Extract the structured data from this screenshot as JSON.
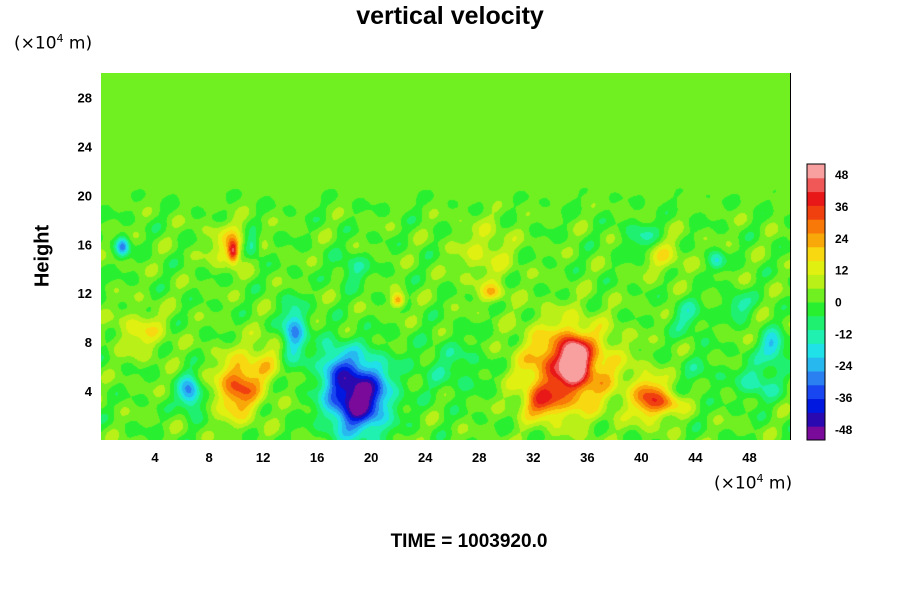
{
  "chart_data": {
    "type": "heatmap",
    "title": "vertical velocity",
    "ylabel": "Height",
    "xlabel": "",
    "x_unit": {
      "prefix": "(×10",
      "exp": "4",
      "suffix": " m)"
    },
    "y_unit": {
      "prefix": "(×10",
      "exp": "4",
      "suffix": " m)"
    },
    "xlim": [
      0,
      51
    ],
    "ylim": [
      0,
      30
    ],
    "x_ticks": [
      "4",
      "8",
      "12",
      "16",
      "20",
      "24",
      "28",
      "32",
      "36",
      "40",
      "44",
      "48"
    ],
    "y_ticks": [
      "4",
      "8",
      "12",
      "16",
      "20",
      "24",
      "28"
    ],
    "colorbar": {
      "range": [
        -52,
        52
      ],
      "ticks": [
        "48",
        "36",
        "24",
        "12",
        "0",
        "-12",
        "-24",
        "-36",
        "-48"
      ]
    },
    "grid": false,
    "background_value": 1,
    "features": [
      {
        "x": 19.0,
        "y": 3.6,
        "rx": 2.2,
        "ry": 3.0,
        "value": -56
      },
      {
        "x": 17.2,
        "y": 6.3,
        "rx": 1.2,
        "ry": 1.9,
        "value": -14
      },
      {
        "x": 14.3,
        "y": 8.8,
        "rx": 0.9,
        "ry": 2.2,
        "value": -28
      },
      {
        "x": 10.2,
        "y": 4.3,
        "rx": 1.6,
        "ry": 2.4,
        "value": 32
      },
      {
        "x": 12.2,
        "y": 6.6,
        "rx": 1.2,
        "ry": 1.9,
        "value": 12
      },
      {
        "x": 6.6,
        "y": 3.8,
        "rx": 0.8,
        "ry": 1.4,
        "value": -30
      },
      {
        "x": 3.0,
        "y": 8.8,
        "rx": 1.8,
        "ry": 1.7,
        "value": 13
      },
      {
        "x": 34.6,
        "y": 5.8,
        "rx": 3.2,
        "ry": 3.4,
        "value": 38
      },
      {
        "x": 35.0,
        "y": 6.6,
        "rx": 0.9,
        "ry": 1.6,
        "value": 42
      },
      {
        "x": 32.6,
        "y": 3.0,
        "rx": 1.3,
        "ry": 1.2,
        "value": 22
      },
      {
        "x": 40.6,
        "y": 3.4,
        "rx": 1.3,
        "ry": 1.8,
        "value": 30
      },
      {
        "x": 42.2,
        "y": 3.0,
        "rx": 1.1,
        "ry": 0.9,
        "value": 16
      },
      {
        "x": 48.7,
        "y": 4.8,
        "rx": 1.5,
        "ry": 1.6,
        "value": -15
      },
      {
        "x": 49.8,
        "y": 7.6,
        "rx": 0.9,
        "ry": 1.2,
        "value": -24
      },
      {
        "x": 1.6,
        "y": 15.8,
        "rx": 0.5,
        "ry": 0.8,
        "value": -28
      },
      {
        "x": 9.6,
        "y": 16.0,
        "rx": 1.6,
        "ry": 1.7,
        "value": 14
      },
      {
        "x": 9.8,
        "y": 15.4,
        "rx": 0.4,
        "ry": 0.9,
        "value": 34
      },
      {
        "x": 11.2,
        "y": 15.8,
        "rx": 0.6,
        "ry": 1.0,
        "value": -20
      },
      {
        "x": 18.6,
        "y": 14.0,
        "rx": 1.1,
        "ry": 1.3,
        "value": -12
      },
      {
        "x": 22.0,
        "y": 11.4,
        "rx": 0.5,
        "ry": 0.6,
        "value": 26
      },
      {
        "x": 28.5,
        "y": 15.2,
        "rx": 2.0,
        "ry": 2.6,
        "value": 10
      },
      {
        "x": 29.0,
        "y": 12.0,
        "rx": 0.9,
        "ry": 0.7,
        "value": 16
      },
      {
        "x": 40.0,
        "y": 16.5,
        "rx": 1.2,
        "ry": 1.4,
        "value": -12
      },
      {
        "x": 41.6,
        "y": 15.0,
        "rx": 1.5,
        "ry": 1.4,
        "value": 12
      },
      {
        "x": 43.5,
        "y": 10.0,
        "rx": 1.2,
        "ry": 1.4,
        "value": -12
      },
      {
        "x": 45.6,
        "y": 14.6,
        "rx": 0.6,
        "ry": 0.8,
        "value": -16
      },
      {
        "x": 47.2,
        "y": 11.0,
        "rx": 1.0,
        "ry": 1.0,
        "value": -14
      },
      {
        "x": 26.0,
        "y": 6.0,
        "rx": 2.8,
        "ry": 2.4,
        "value": -8
      },
      {
        "x": 44.5,
        "y": 5.5,
        "rx": 1.6,
        "ry": 1.6,
        "value": -6
      }
    ]
  },
  "footer": {
    "time_text": "TIME = 1003920.0"
  }
}
